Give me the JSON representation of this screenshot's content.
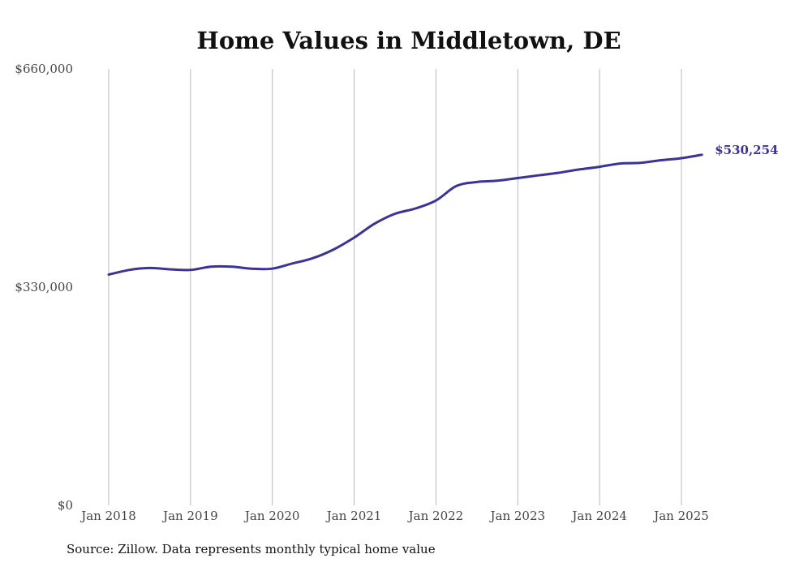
{
  "chart_data": {
    "type": "line",
    "title": "Home Values in Middletown, DE",
    "xlabel": "",
    "ylabel": "",
    "ylim": [
      0,
      660000
    ],
    "y_ticks": [
      0,
      330000,
      660000
    ],
    "y_tick_labels": [
      "$0",
      "$330,000",
      "$660,000"
    ],
    "x_ticks": [
      "2018-01",
      "2019-01",
      "2020-01",
      "2021-01",
      "2022-01",
      "2023-01",
      "2024-01",
      "2025-01"
    ],
    "x_tick_labels": [
      "Jan 2018",
      "Jan 2019",
      "Jan 2020",
      "Jan 2021",
      "Jan 2022",
      "Jan 2023",
      "Jan 2024",
      "Jan 2025"
    ],
    "grid": "vertical",
    "line_color": "#3a3494",
    "series": [
      {
        "x": [
          "2018-01",
          "2018-04",
          "2018-07",
          "2018-10",
          "2019-01",
          "2019-04",
          "2019-07",
          "2019-10",
          "2020-01",
          "2020-04",
          "2020-07",
          "2020-10",
          "2021-01",
          "2021-04",
          "2021-07",
          "2021-10",
          "2022-01",
          "2022-04",
          "2022-07",
          "2022-10",
          "2023-01",
          "2023-04",
          "2023-07",
          "2023-10",
          "2024-01",
          "2024-04",
          "2024-07",
          "2024-10",
          "2025-01",
          "2025-04"
        ],
        "values": [
          349000,
          356000,
          359000,
          357000,
          356000,
          361000,
          361000,
          358000,
          358000,
          366000,
          374000,
          387000,
          405000,
          426000,
          441000,
          449000,
          461000,
          483000,
          489000,
          491000,
          495000,
          499000,
          503000,
          508000,
          512000,
          517000,
          518000,
          522000,
          525000,
          530254
        ]
      }
    ],
    "end_label": "$530,254"
  },
  "source": "Source: Zillow. Data represents monthly typical home value"
}
